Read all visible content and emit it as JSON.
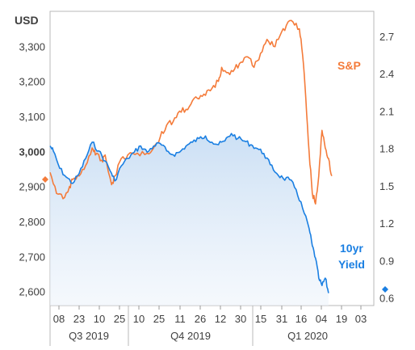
{
  "chart_data": {
    "type": "line",
    "unit_label": "USD",
    "left_axis": {
      "ylim": [
        2560,
        3400
      ],
      "ticks": [
        "2,600",
        "2,700",
        "2,800",
        "2,900",
        "3,000",
        "3,100",
        "3,200",
        "3,300"
      ],
      "bold_tick": "3,000"
    },
    "right_axis": {
      "ylim": [
        0.54,
        2.9
      ],
      "ticks": [
        "0.6",
        "0.9",
        "1.2",
        "1.5",
        "1.8",
        "2.1",
        "2.4",
        "2.7"
      ]
    },
    "x_axis": {
      "day_ticks": [
        "08",
        "23",
        "10",
        "25",
        "10",
        "25",
        "11",
        "26",
        "12",
        "30",
        "15",
        "31",
        "16",
        "04",
        "19",
        "03"
      ],
      "quarters": [
        "Q3 2019",
        "Q4 2019",
        "Q1 2020"
      ]
    },
    "series": [
      {
        "name": "S&P",
        "color": "#f47b3a",
        "axis": "left",
        "points": [
          [
            0,
            2940
          ],
          [
            2,
            2880
          ],
          [
            4,
            2865
          ],
          [
            6,
            2900
          ],
          [
            7,
            2920
          ],
          [
            9,
            2930
          ],
          [
            11,
            2960
          ],
          [
            13,
            3010
          ],
          [
            14,
            2990
          ],
          [
            16,
            2975
          ],
          [
            17,
            2990
          ],
          [
            19,
            2905
          ],
          [
            20,
            2930
          ],
          [
            22,
            2980
          ],
          [
            24,
            2990
          ],
          [
            27,
            2995
          ],
          [
            30,
            2995
          ],
          [
            32,
            3010
          ],
          [
            34,
            3040
          ],
          [
            36,
            3075
          ],
          [
            38,
            3085
          ],
          [
            40,
            3115
          ],
          [
            42,
            3120
          ],
          [
            44,
            3145
          ],
          [
            46,
            3150
          ],
          [
            48,
            3160
          ],
          [
            50,
            3180
          ],
          [
            52,
            3200
          ],
          [
            53,
            3240
          ],
          [
            55,
            3225
          ],
          [
            57,
            3235
          ],
          [
            59,
            3255
          ],
          [
            61,
            3270
          ],
          [
            63,
            3240
          ],
          [
            65,
            3280
          ],
          [
            67,
            3320
          ],
          [
            69,
            3300
          ],
          [
            71,
            3330
          ],
          [
            73,
            3360
          ],
          [
            75,
            3370
          ],
          [
            77,
            3350
          ],
          [
            78,
            3275
          ],
          [
            79,
            3150
          ],
          [
            80,
            3000
          ],
          [
            81,
            2880
          ],
          [
            82,
            2850
          ],
          [
            83,
            2930
          ],
          [
            84,
            3060
          ],
          [
            85,
            3010
          ],
          [
            86,
            2980
          ],
          [
            87,
            2930
          ]
        ]
      },
      {
        "name": "10yr Yield",
        "color": "#1a7fe2",
        "axis": "right",
        "points": [
          [
            0,
            1.82
          ],
          [
            1,
            1.78
          ],
          [
            3,
            1.64
          ],
          [
            5,
            1.57
          ],
          [
            7,
            1.52
          ],
          [
            9,
            1.6
          ],
          [
            11,
            1.72
          ],
          [
            13,
            1.85
          ],
          [
            15,
            1.78
          ],
          [
            17,
            1.7
          ],
          [
            19,
            1.6
          ],
          [
            20,
            1.54
          ],
          [
            22,
            1.66
          ],
          [
            24,
            1.72
          ],
          [
            26,
            1.77
          ],
          [
            28,
            1.82
          ],
          [
            30,
            1.77
          ],
          [
            32,
            1.82
          ],
          [
            34,
            1.84
          ],
          [
            36,
            1.78
          ],
          [
            38,
            1.75
          ],
          [
            40,
            1.77
          ],
          [
            42,
            1.82
          ],
          [
            44,
            1.85
          ],
          [
            46,
            1.88
          ],
          [
            48,
            1.9
          ],
          [
            50,
            1.85
          ],
          [
            52,
            1.83
          ],
          [
            54,
            1.86
          ],
          [
            56,
            1.92
          ],
          [
            58,
            1.88
          ],
          [
            60,
            1.86
          ],
          [
            62,
            1.83
          ],
          [
            64,
            1.8
          ],
          [
            66,
            1.76
          ],
          [
            68,
            1.67
          ],
          [
            70,
            1.6
          ],
          [
            72,
            1.56
          ],
          [
            74,
            1.55
          ],
          [
            76,
            1.47
          ],
          [
            78,
            1.32
          ],
          [
            80,
            1.16
          ],
          [
            81,
            1.02
          ],
          [
            82,
            0.92
          ],
          [
            83,
            0.76
          ],
          [
            84,
            0.7
          ],
          [
            85,
            0.76
          ],
          [
            86,
            0.64
          ]
        ]
      }
    ],
    "markers": {
      "sp_latest": 2920,
      "yield_latest": 0.67
    },
    "series_labels": {
      "sp": "S&P",
      "yield_line1": "10yr",
      "yield_line2": "Yield"
    }
  }
}
